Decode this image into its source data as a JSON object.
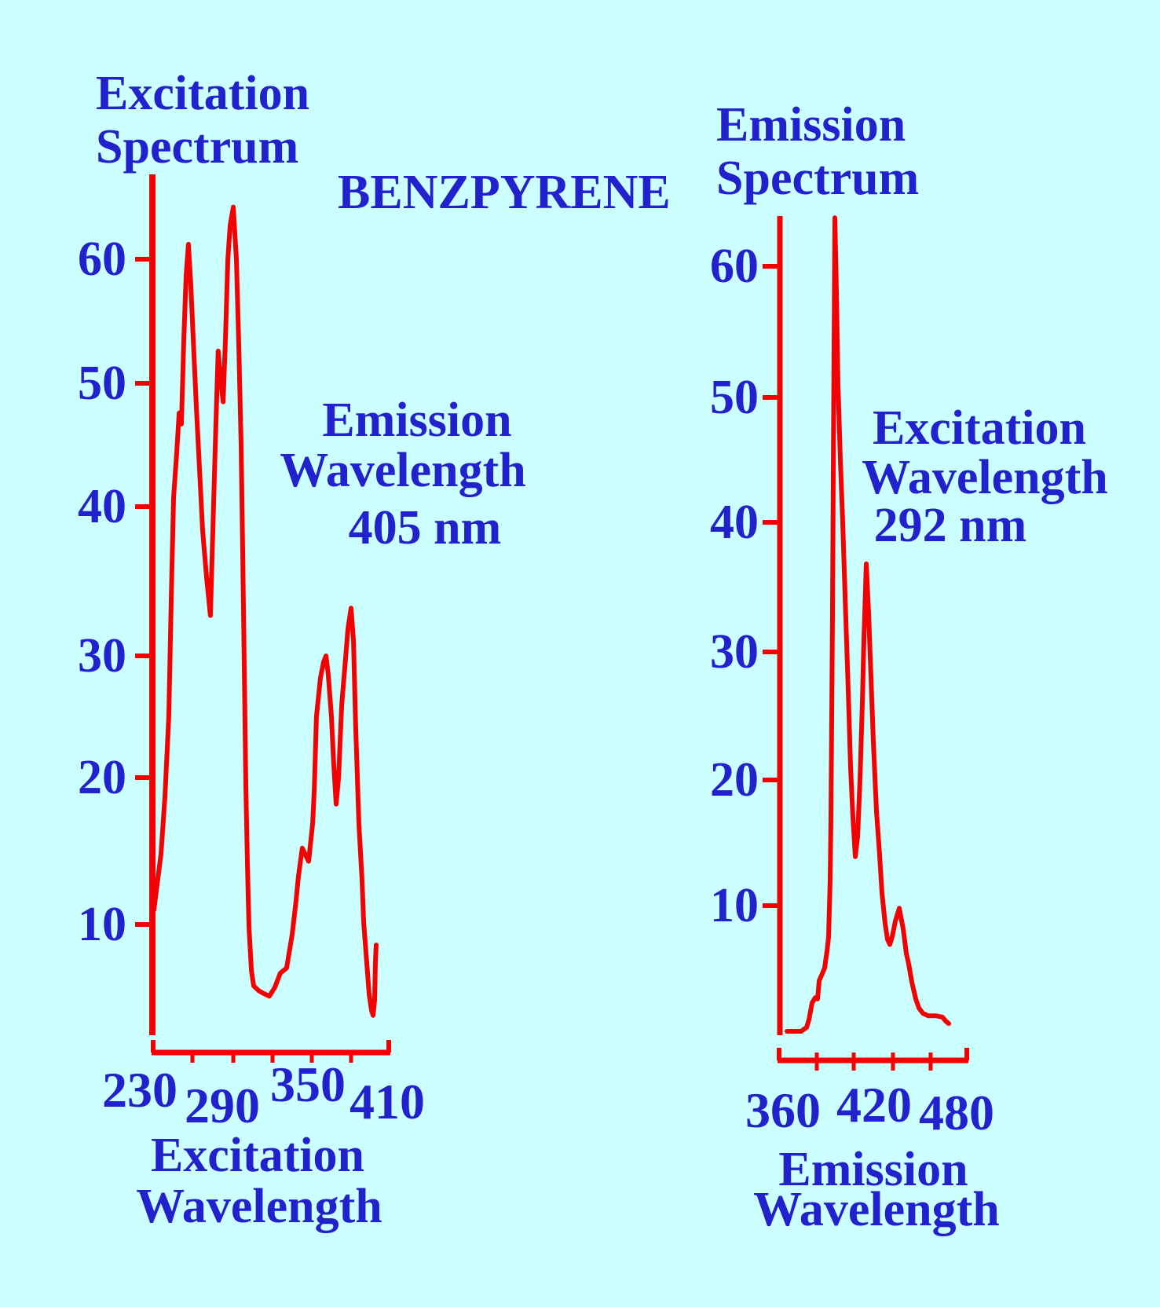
{
  "compound": "BENZPYRENE",
  "colors": {
    "background": "#ccffff",
    "text": "#2121cd",
    "curve": "#f40000"
  },
  "left_chart": {
    "title_lines": [
      "Excitation",
      "Spectrum"
    ],
    "annotation_lines": [
      "Emission",
      "Wavelength",
      "405 nm"
    ],
    "axis_title_lines": [
      "Excitation",
      "Wavelength"
    ],
    "y_tick_labels": [
      "60",
      "50",
      "40",
      "30",
      "20",
      "10"
    ],
    "x_tick_labels": [
      "230",
      "290",
      "350",
      "410"
    ]
  },
  "right_chart": {
    "title_lines": [
      "Emission",
      "Spectrum"
    ],
    "annotation_lines": [
      "Excitation",
      "Wavelength",
      "292 nm"
    ],
    "axis_title_lines": [
      "Emission",
      "Wavelength"
    ],
    "y_tick_labels": [
      "60",
      "50",
      "40",
      "30",
      "20",
      "10"
    ],
    "x_tick_labels": [
      "360",
      "420",
      "480"
    ]
  },
  "chart_data": [
    {
      "type": "line",
      "title": "Excitation Spectrum",
      "subtitle": "BENZPYRENE",
      "annotation": "Emission Wavelength 405 nm",
      "xlabel": "Excitation Wavelength",
      "ylabel": "",
      "xlim": [
        230,
        410
      ],
      "ylim": [
        0,
        67
      ],
      "grid": false,
      "x_ticks_labeled": [
        230,
        290,
        350,
        410
      ],
      "y_ticks_labeled": [
        60,
        50,
        40,
        30,
        20,
        10
      ],
      "series": [
        {
          "name": "benzpyrene-excitation",
          "points": [
            [
              240.3,
              11
            ],
            [
              245.4,
              14.8
            ],
            [
              248.3,
              18.7
            ],
            [
              251.1,
              25
            ],
            [
              252.9,
              34
            ],
            [
              254.6,
              40.7
            ],
            [
              256.9,
              44.5
            ],
            [
              258.6,
              47.6
            ],
            [
              260.3,
              46.7
            ],
            [
              262.0,
              53.5
            ],
            [
              263.7,
              58.7
            ],
            [
              265.4,
              61.2
            ],
            [
              267.1,
              58
            ],
            [
              268.9,
              53.5
            ],
            [
              271.1,
              48.2
            ],
            [
              273.4,
              43.2
            ],
            [
              275.7,
              38.4
            ],
            [
              278.6,
              35.2
            ],
            [
              281.4,
              32.7
            ],
            [
              283.7,
              40.3
            ],
            [
              285.4,
              46.7
            ],
            [
              287.0,
              52.6
            ],
            [
              288.7,
              50.5
            ],
            [
              290.6,
              48.5
            ],
            [
              292.2,
              53.5
            ],
            [
              293.9,
              60
            ],
            [
              295.5,
              62.7
            ],
            [
              297.7,
              64.2
            ],
            [
              299.9,
              60
            ],
            [
              301.6,
              52.9
            ],
            [
              303.2,
              45
            ],
            [
              304.3,
              37
            ],
            [
              305.4,
              29.2
            ],
            [
              306.5,
              19.5
            ],
            [
              307.6,
              14.2
            ],
            [
              308.7,
              9.8
            ],
            [
              310.4,
              6.4
            ],
            [
              312.0,
              5.2
            ],
            [
              315.9,
              4.8
            ],
            [
              319.2,
              4.6
            ],
            [
              323.0,
              4.4
            ],
            [
              326.9,
              5.1
            ],
            [
              330.7,
              6.2
            ],
            [
              335.1,
              6.6
            ],
            [
              339.0,
              9.2
            ],
            [
              341.7,
              11.6
            ],
            [
              343.4,
              13.3
            ],
            [
              346.1,
              15.2
            ],
            [
              350.6,
              14.3
            ],
            [
              353.6,
              16.9
            ],
            [
              354.8,
              19.1
            ],
            [
              356.5,
              25
            ],
            [
              359.5,
              28.2
            ],
            [
              361.9,
              29.5
            ],
            [
              363.7,
              30
            ],
            [
              365.4,
              28.5
            ],
            [
              367.8,
              25
            ],
            [
              369.6,
              21
            ],
            [
              371.4,
              18.2
            ],
            [
              373.2,
              20
            ],
            [
              375.6,
              26
            ],
            [
              377.9,
              29
            ],
            [
              380.3,
              31.8
            ],
            [
              382.7,
              33.2
            ],
            [
              384.5,
              31
            ],
            [
              386.2,
              24.1
            ],
            [
              388.6,
              16.8
            ],
            [
              391.0,
              13
            ],
            [
              392.2,
              10.2
            ],
            [
              394.6,
              6.9
            ],
            [
              396.4,
              4.5
            ],
            [
              398.1,
              3.3
            ],
            [
              399.3,
              2.9
            ],
            [
              400.5,
              4.1
            ],
            [
              401.1,
              7.1
            ],
            [
              401.7,
              8.4
            ]
          ]
        }
      ]
    },
    {
      "type": "line",
      "title": "Emission Spectrum",
      "subtitle": "BENZPYRENE",
      "annotation": "Excitation Wavelength 292 nm",
      "xlabel": "Emission Wavelength",
      "ylabel": "",
      "xlim": [
        360,
        480
      ],
      "ylim": [
        0,
        67
      ],
      "grid": false,
      "x_ticks_labeled": [
        360,
        420,
        480
      ],
      "y_ticks_labeled": [
        60,
        50,
        40,
        30,
        20,
        10
      ],
      "series": [
        {
          "name": "benzpyrene-emission",
          "points": [
            [
              366,
              0.3
            ],
            [
              375,
              0.3
            ],
            [
              378.5,
              0.6
            ],
            [
              380,
              1.2
            ],
            [
              382,
              2.5
            ],
            [
              384,
              2.9
            ],
            [
              385.5,
              2.8
            ],
            [
              386.5,
              4.2
            ],
            [
              389,
              4.9
            ],
            [
              390,
              5.2
            ],
            [
              391.5,
              6.5
            ],
            [
              392.5,
              7.6
            ],
            [
              393.5,
              12
            ],
            [
              394,
              17
            ],
            [
              394.5,
              25
            ],
            [
              395,
              33
            ],
            [
              395.5,
              44
            ],
            [
              396,
              54
            ],
            [
              396.5,
              63.7
            ],
            [
              397.5,
              58
            ],
            [
              398.5,
              51
            ],
            [
              400,
              45
            ],
            [
              401.5,
              40
            ],
            [
              403.5,
              32.5
            ],
            [
              405,
              27
            ],
            [
              406.5,
              21
            ],
            [
              408,
              17
            ],
            [
              409.5,
              13.9
            ],
            [
              411,
              15.5
            ],
            [
              412.5,
              20
            ],
            [
              414,
              26
            ],
            [
              415,
              31
            ],
            [
              416.5,
              36.8
            ],
            [
              418,
              33
            ],
            [
              419.5,
              28
            ],
            [
              421,
              23
            ],
            [
              423,
              17.5
            ],
            [
              425,
              14
            ],
            [
              426.5,
              11
            ],
            [
              428.5,
              8.6
            ],
            [
              430,
              7.4
            ],
            [
              431.5,
              7.0
            ],
            [
              433,
              7.6
            ],
            [
              435,
              8.8
            ],
            [
              437.5,
              9.8
            ],
            [
              440,
              8.2
            ],
            [
              442,
              6.3
            ],
            [
              443.5,
              5.5
            ],
            [
              445.5,
              4.1
            ],
            [
              448,
              2.8
            ],
            [
              450,
              2.1
            ],
            [
              452.5,
              1.7
            ],
            [
              456,
              1.5
            ],
            [
              461,
              1.5
            ],
            [
              465,
              1.4
            ],
            [
              467,
              1.1
            ],
            [
              469,
              0.9
            ]
          ]
        }
      ]
    }
  ]
}
